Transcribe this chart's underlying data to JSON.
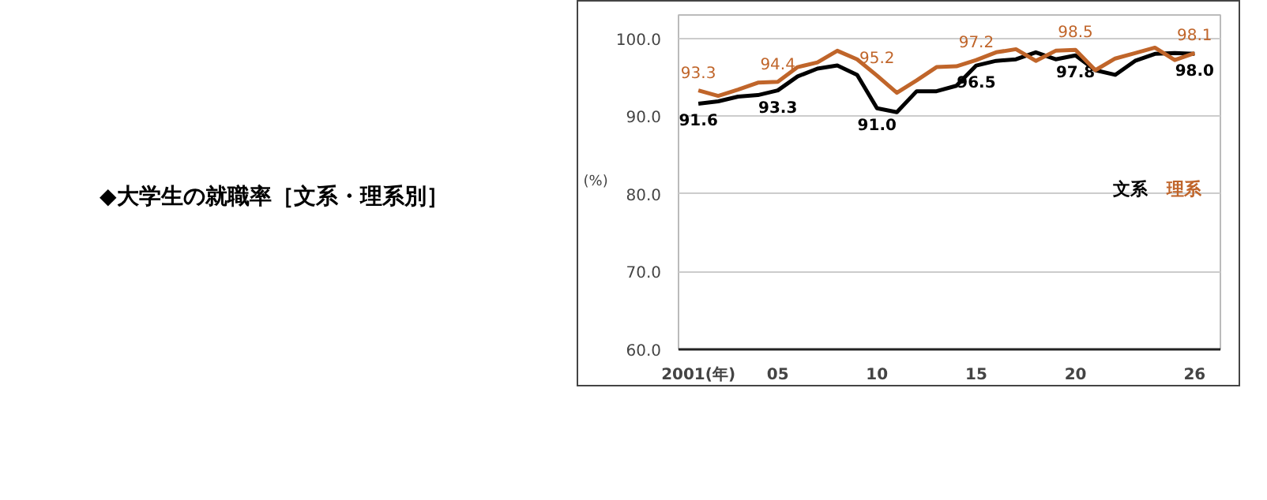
{
  "chart_data": {
    "type": "line",
    "title": "◆大学生の就職率［文系・理系別］",
    "ylabel": "(%)",
    "x": [
      2001,
      2002,
      2003,
      2004,
      2005,
      2006,
      2007,
      2008,
      2009,
      2010,
      2011,
      2012,
      2013,
      2014,
      2015,
      2016,
      2017,
      2018,
      2019,
      2020,
      2021,
      2022,
      2023,
      2024,
      2025,
      2026
    ],
    "series": [
      {
        "name": "文系",
        "color": "#000000",
        "values": [
          91.6,
          91.9,
          92.5,
          92.7,
          93.3,
          95.1,
          96.1,
          96.5,
          95.3,
          91.0,
          90.5,
          93.2,
          93.2,
          93.9,
          96.5,
          97.1,
          97.3,
          98.2,
          97.3,
          97.8,
          95.9,
          95.3,
          97.1,
          98.0,
          98.1,
          98.0
        ],
        "value_labels": [
          "91.6",
          null,
          null,
          null,
          "93.3",
          null,
          null,
          null,
          null,
          "91.0",
          null,
          null,
          null,
          null,
          "96.5",
          null,
          null,
          null,
          null,
          "97.8",
          null,
          null,
          null,
          null,
          null,
          "98.0"
        ]
      },
      {
        "name": "理系",
        "color": "#c0652a",
        "values": [
          93.3,
          92.6,
          93.4,
          94.3,
          94.4,
          96.3,
          96.9,
          98.4,
          97.3,
          95.2,
          93.0,
          94.6,
          96.3,
          96.4,
          97.2,
          98.2,
          98.6,
          97.1,
          98.4,
          98.5,
          95.9,
          97.4,
          98.1,
          98.8,
          97.2,
          98.1
        ],
        "value_labels": [
          "93.3",
          null,
          null,
          null,
          "94.4",
          null,
          null,
          null,
          null,
          "95.2",
          null,
          null,
          null,
          null,
          "97.2",
          null,
          null,
          null,
          null,
          "98.5",
          null,
          null,
          null,
          null,
          null,
          "98.1"
        ]
      }
    ],
    "xlim": [
      2000,
      2027.3
    ],
    "xticks": [
      {
        "value": 2001,
        "label": "2001(年)"
      },
      {
        "value": 2005,
        "label": "05"
      },
      {
        "value": 2010,
        "label": "10"
      },
      {
        "value": 2015,
        "label": "15"
      },
      {
        "value": 2020,
        "label": "20"
      },
      {
        "value": 2026,
        "label": "26"
      }
    ],
    "ylim": [
      60,
      103
    ],
    "yticks": [
      {
        "value": 60,
        "label": "60.0"
      },
      {
        "value": 70,
        "label": "70.0"
      },
      {
        "value": 80,
        "label": "80.0"
      },
      {
        "value": 90,
        "label": "90.0"
      },
      {
        "value": 100,
        "label": "100.0"
      }
    ],
    "grid": "y",
    "legend": "right",
    "marker": "none",
    "line_style": "solid"
  }
}
